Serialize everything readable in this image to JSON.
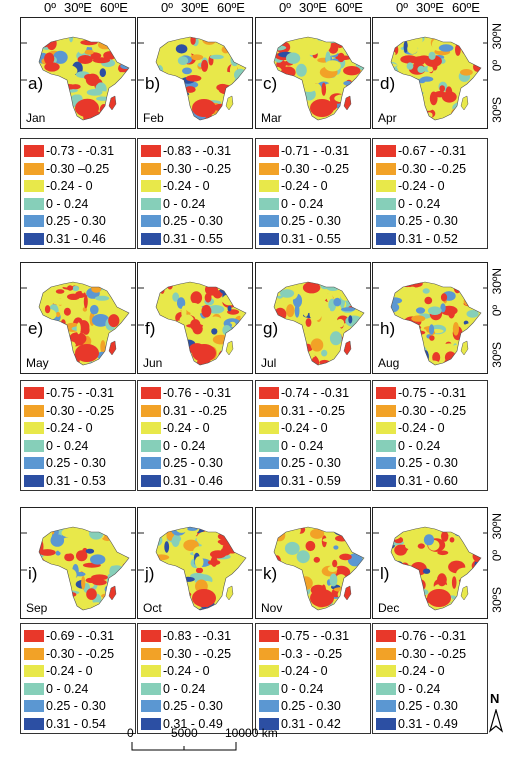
{
  "lon_labels": [
    "0º",
    "30ºE",
    "60ºE"
  ],
  "lat_labels": [
    "30ºN",
    "0º",
    "30ºS"
  ],
  "colors": {
    "class1": "#e8382a",
    "class2": "#f2a227",
    "class3": "#e8e84a",
    "class4": "#86cfb9",
    "class5": "#5b97d2",
    "class6": "#2c4fa3"
  },
  "panels": [
    {
      "letter": "a)",
      "month": "Jan",
      "legend": [
        "-0.73 - -0.31",
        "-0.30 –0.25",
        "-0.24 - 0",
        "0 - 0.24",
        "0.25 - 0.30",
        "0.31 - 0.46"
      ]
    },
    {
      "letter": "b)",
      "month": "Feb",
      "legend": [
        "-0.83 - -0.31",
        "-0.30 - -0.25",
        "-0.24 - 0",
        "0 - 0.24",
        "0.25 - 0.30",
        "0.31 - 0.55"
      ]
    },
    {
      "letter": "c)",
      "month": "Mar",
      "legend": [
        "-0.71 - -0.31",
        "-0.30 - -0.25",
        "-0.24 - 0",
        "0 - 0.24",
        "0.25 - 0.30",
        "0.31 - 0.55"
      ]
    },
    {
      "letter": "d)",
      "month": "Apr",
      "legend": [
        "-0.67 - -0.31",
        "-0.30 - -0.25",
        "-0.24 - 0",
        "0 - 0.24",
        "0.25 - 0.30",
        "0.31 - 0.52"
      ]
    },
    {
      "letter": "e)",
      "month": "May",
      "legend": [
        "-0.75 - -0.31",
        "-0.30 - -0.25",
        "-0.24 - 0",
        "0 - 0.24",
        "0.25 - 0.30",
        "0.31 - 0.53"
      ]
    },
    {
      "letter": "f)",
      "month": "Jun",
      "legend": [
        "-0.76 - -0.31",
        "0.31 - -0.25",
        "-0.24 - 0",
        "0 - 0.24",
        "0.25 - 0.30",
        "0.31 - 0.46"
      ]
    },
    {
      "letter": "g)",
      "month": "Jul",
      "legend": [
        "-0.74 - -0.31",
        "0.31 - -0.25",
        "-0.24 - 0",
        "0 - 0.24",
        "0.25 - 0.30",
        "0.31 - 0.59"
      ]
    },
    {
      "letter": "h)",
      "month": "Aug",
      "legend": [
        "-0.75 - -0.31",
        "-0.30 - -0.25",
        "-0.24 - 0",
        "0 - 0.24",
        "0.25 - 0.30",
        "0.31 - 0.60"
      ]
    },
    {
      "letter": "i)",
      "month": "Sep",
      "legend": [
        "-0.69 - -0.31",
        "-0.30 - -0.25",
        "-0.24 - 0",
        "0 - 0.24",
        "0.25 - 0.30",
        "0.31 - 0.54"
      ]
    },
    {
      "letter": "j)",
      "month": "Oct",
      "legend": [
        "-0.83 - -0.31",
        "-0.30 - -0.25",
        "-0.24 - 0",
        "0 - 0.24",
        "0.25 - 0.30",
        "0.31 - 0.49"
      ]
    },
    {
      "letter": "k)",
      "month": "Nov",
      "legend": [
        "-0.75 - -0.31",
        "-0.3 - -0.25",
        "-0.24 - 0",
        "0 - 0.24",
        "0.25 - 0.30",
        "0.31 - 0.42"
      ]
    },
    {
      "letter": "l)",
      "month": "Dec",
      "legend": [
        "-0.76 - -0.31",
        "-0.30 - -0.25",
        "-0.24 - 0",
        "0 - 0.24",
        "0.25 - 0.30",
        "0.31 - 0.49"
      ]
    }
  ],
  "scale_bar": {
    "labels": [
      "0",
      "5000",
      "10000 km"
    ]
  },
  "north_arrow": {
    "label": "N",
    "icon": "north-arrow-icon"
  }
}
